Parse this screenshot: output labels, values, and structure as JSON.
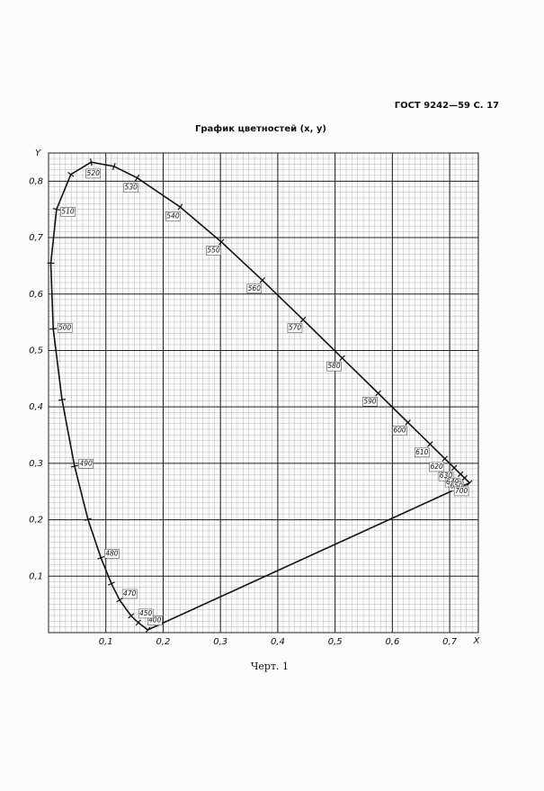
{
  "header": "ГОСТ 9242—59 С. 17",
  "caption": "Черт. 1",
  "chart_data": {
    "type": "line",
    "title": "График цветностей (x, y)",
    "x_label": "X",
    "y_label": "Y",
    "xlim": [
      0,
      0.75
    ],
    "ylim": [
      0,
      0.85
    ],
    "xticks": [
      {
        "value": 0.1,
        "label": "0,1"
      },
      {
        "value": 0.2,
        "label": "0,2"
      },
      {
        "value": 0.3,
        "label": "0,3"
      },
      {
        "value": 0.4,
        "label": "0,4"
      },
      {
        "value": 0.5,
        "label": "0,5"
      },
      {
        "value": 0.6,
        "label": "0,6"
      },
      {
        "value": 0.7,
        "label": "0,7"
      }
    ],
    "yticks": [
      {
        "value": 0.1,
        "label": "0,1"
      },
      {
        "value": 0.2,
        "label": "0,2"
      },
      {
        "value": 0.3,
        "label": "0,3"
      },
      {
        "value": 0.4,
        "label": "0,4"
      },
      {
        "value": 0.5,
        "label": "0,5"
      },
      {
        "value": 0.6,
        "label": "0,6"
      },
      {
        "value": 0.7,
        "label": "0,7"
      },
      {
        "value": 0.8,
        "label": "0,8"
      }
    ],
    "grid": true,
    "closed": true,
    "color": "#111111",
    "x": [
      0.1733,
      0.1566,
      0.144,
      0.1241,
      0.1096,
      0.0913,
      0.0687,
      0.0454,
      0.0235,
      0.0082,
      0.0039,
      0.0139,
      0.0389,
      0.0743,
      0.1142,
      0.1547,
      0.2296,
      0.3016,
      0.3731,
      0.4441,
      0.5125,
      0.5752,
      0.627,
      0.6658,
      0.6915,
      0.7079,
      0.719,
      0.726,
      0.7347
    ],
    "y": [
      0.0048,
      0.0177,
      0.0297,
      0.0578,
      0.0868,
      0.1327,
      0.2007,
      0.295,
      0.4127,
      0.5384,
      0.6548,
      0.7502,
      0.812,
      0.8338,
      0.8262,
      0.8059,
      0.7543,
      0.6923,
      0.6245,
      0.5547,
      0.4866,
      0.4242,
      0.3725,
      0.334,
      0.3083,
      0.292,
      0.2809,
      0.274,
      0.2653
    ],
    "point_labels": [
      "400",
      "450",
      null,
      "470",
      null,
      "480",
      null,
      "490",
      null,
      "500",
      null,
      "510",
      null,
      "520",
      null,
      "530",
      "540",
      "550",
      "560",
      "570",
      "580",
      "590",
      "600",
      "610",
      "620",
      "630",
      "640",
      "650",
      "700"
    ]
  }
}
